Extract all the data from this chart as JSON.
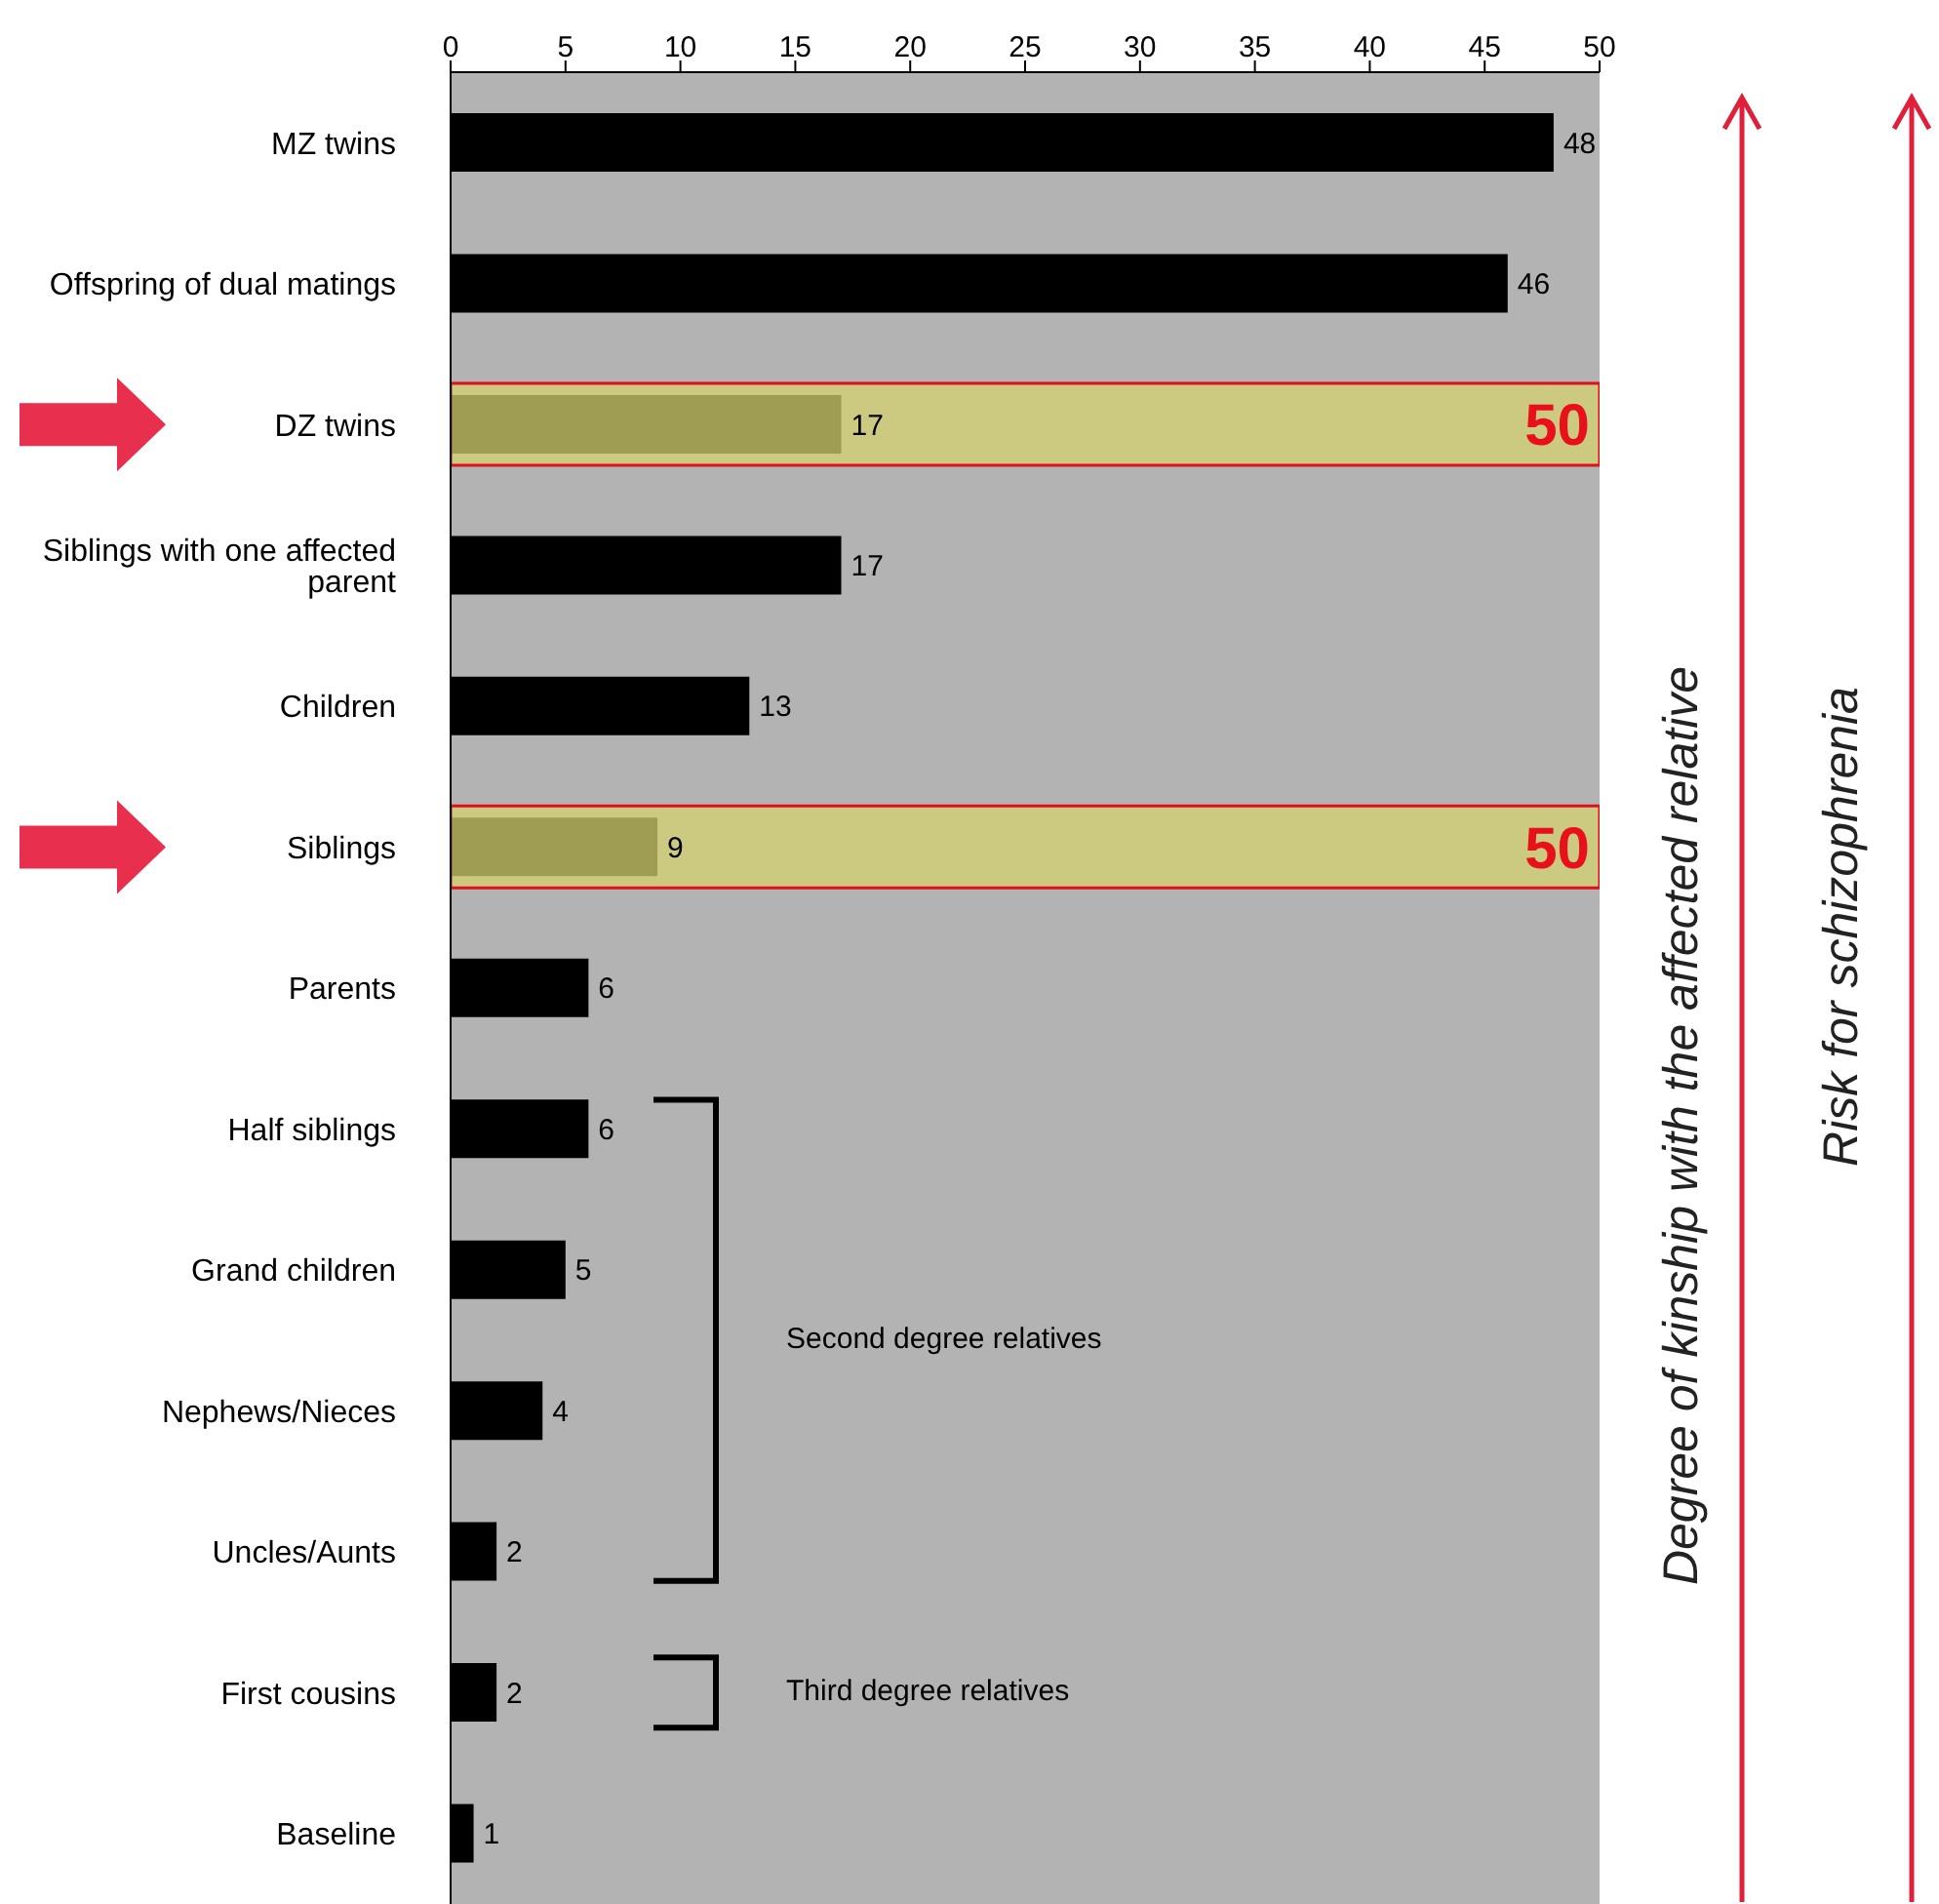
{
  "chart_data": {
    "type": "bar",
    "orientation": "horizontal",
    "categories": [
      "MZ twins",
      "Offspring of dual matings",
      "DZ twins",
      "Siblings with one affected parent",
      "Children",
      "Siblings",
      "Parents",
      "Half siblings",
      "Grand children",
      "Nephews/Nieces",
      "Uncles/Aunts",
      "First cousins",
      "Baseline"
    ],
    "series": [
      {
        "color": "#000000",
        "values": [
          48,
          46,
          17,
          17,
          13,
          9,
          6,
          6,
          5,
          4,
          2,
          2,
          1
        ]
      },
      {
        "color": "#d4d070",
        "values": [
          null,
          null,
          50,
          null,
          null,
          50,
          null,
          null,
          null,
          null,
          null,
          null,
          null
        ]
      }
    ],
    "xlim": [
      0,
      50
    ],
    "xticks": [
      0,
      5,
      10,
      15,
      20,
      25,
      30,
      35,
      40,
      45,
      50
    ],
    "data_labels": true,
    "annotations": [
      "Second degree relatives",
      "Third degree relatives",
      "Degree of kinship with the affected relative",
      "Risk for schizophrenia"
    ]
  }
}
